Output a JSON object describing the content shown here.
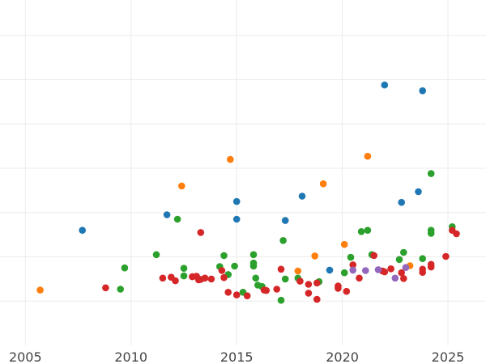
{
  "chart_data": {
    "type": "scatter",
    "title": "",
    "xlabel": "",
    "ylabel": "",
    "xlim": [
      2003.8,
      2026.8
    ],
    "ylim": [
      0,
      7.8
    ],
    "x_ticks": [
      2005,
      2010,
      2015,
      2020,
      2025
    ],
    "x_tick_labels": [
      "2005",
      "2010",
      "2015",
      "2020",
      "2025"
    ],
    "y_grid": [
      1,
      2,
      3,
      4,
      5,
      6,
      7
    ],
    "grid": true,
    "legend": "none",
    "series": [
      {
        "color": "#1f77b4",
        "points": [
          [
            2007.7,
            2.6
          ],
          [
            2011.7,
            2.95
          ],
          [
            2015.0,
            2.85
          ],
          [
            2015.0,
            3.25
          ],
          [
            2017.3,
            2.82
          ],
          [
            2018.1,
            3.37
          ],
          [
            2019.4,
            1.7
          ],
          [
            2022.0,
            5.88
          ],
          [
            2022.8,
            3.23
          ],
          [
            2023.6,
            3.47
          ],
          [
            2023.8,
            5.75
          ]
        ]
      },
      {
        "color": "#ff7f0e",
        "points": [
          [
            2005.7,
            1.25
          ],
          [
            2012.4,
            3.6
          ],
          [
            2014.7,
            4.2
          ],
          [
            2017.9,
            1.68
          ],
          [
            2018.7,
            2.02
          ],
          [
            2019.1,
            3.65
          ],
          [
            2020.1,
            2.28
          ],
          [
            2021.2,
            4.27
          ],
          [
            2023.2,
            1.8
          ]
        ]
      },
      {
        "color": "#2ca02c",
        "points": [
          [
            2009.5,
            1.27
          ],
          [
            2009.7,
            1.75
          ],
          [
            2011.2,
            2.05
          ],
          [
            2012.2,
            2.85
          ],
          [
            2012.5,
            1.57
          ],
          [
            2012.5,
            1.74
          ],
          [
            2014.2,
            1.78
          ],
          [
            2014.4,
            2.03
          ],
          [
            2014.6,
            1.6
          ],
          [
            2014.9,
            1.79
          ],
          [
            2015.3,
            1.2
          ],
          [
            2015.8,
            1.86
          ],
          [
            2015.8,
            2.05
          ],
          [
            2015.8,
            1.79
          ],
          [
            2015.9,
            1.52
          ],
          [
            2016.0,
            1.36
          ],
          [
            2016.2,
            1.33
          ],
          [
            2017.1,
            1.02
          ],
          [
            2017.2,
            2.37
          ],
          [
            2017.3,
            1.5
          ],
          [
            2017.9,
            1.52
          ],
          [
            2018.9,
            1.44
          ],
          [
            2020.1,
            1.64
          ],
          [
            2020.4,
            1.99
          ],
          [
            2020.9,
            2.57
          ],
          [
            2021.2,
            2.6
          ],
          [
            2021.4,
            2.05
          ],
          [
            2022.7,
            1.94
          ],
          [
            2022.9,
            2.1
          ],
          [
            2023.8,
            1.96
          ],
          [
            2024.2,
            2.53
          ],
          [
            2024.2,
            2.6
          ],
          [
            2024.2,
            3.88
          ],
          [
            2025.2,
            2.68
          ]
        ]
      },
      {
        "color": "#d62728",
        "points": [
          [
            2008.8,
            1.3
          ],
          [
            2011.5,
            1.52
          ],
          [
            2011.9,
            1.54
          ],
          [
            2012.1,
            1.46
          ],
          [
            2012.9,
            1.55
          ],
          [
            2013.1,
            1.56
          ],
          [
            2013.2,
            1.48
          ],
          [
            2013.3,
            1.49
          ],
          [
            2013.5,
            1.52
          ],
          [
            2013.8,
            1.5
          ],
          [
            2014.3,
            1.69
          ],
          [
            2014.4,
            1.53
          ],
          [
            2014.6,
            1.2
          ],
          [
            2015.0,
            1.14
          ],
          [
            2015.5,
            1.12
          ],
          [
            2016.3,
            1.25
          ],
          [
            2016.4,
            1.24
          ],
          [
            2016.9,
            1.27
          ],
          [
            2017.1,
            1.72
          ],
          [
            2018.0,
            1.45
          ],
          [
            2018.4,
            1.38
          ],
          [
            2018.4,
            1.18
          ],
          [
            2018.8,
            1.41
          ],
          [
            2018.8,
            1.04
          ],
          [
            2019.8,
            1.34
          ],
          [
            2019.8,
            1.29
          ],
          [
            2020.2,
            1.22
          ],
          [
            2020.5,
            1.82
          ],
          [
            2020.8,
            1.52
          ],
          [
            2021.5,
            2.03
          ],
          [
            2021.9,
            1.68
          ],
          [
            2022.0,
            1.66
          ],
          [
            2022.3,
            1.73
          ],
          [
            2022.8,
            1.64
          ],
          [
            2022.9,
            1.51
          ],
          [
            2023.8,
            1.65
          ],
          [
            2023.8,
            1.72
          ],
          [
            2024.2,
            1.77
          ],
          [
            2024.2,
            1.83
          ],
          [
            2024.9,
            2.01
          ],
          [
            2025.2,
            2.6
          ],
          [
            2025.4,
            2.52
          ],
          [
            2013.3,
            2.55
          ]
        ]
      },
      {
        "color": "#9467bd",
        "points": [
          [
            2020.5,
            1.7
          ],
          [
            2021.1,
            1.69
          ],
          [
            2021.7,
            1.71
          ],
          [
            2022.5,
            1.52
          ],
          [
            2023.0,
            1.76
          ]
        ]
      }
    ]
  }
}
